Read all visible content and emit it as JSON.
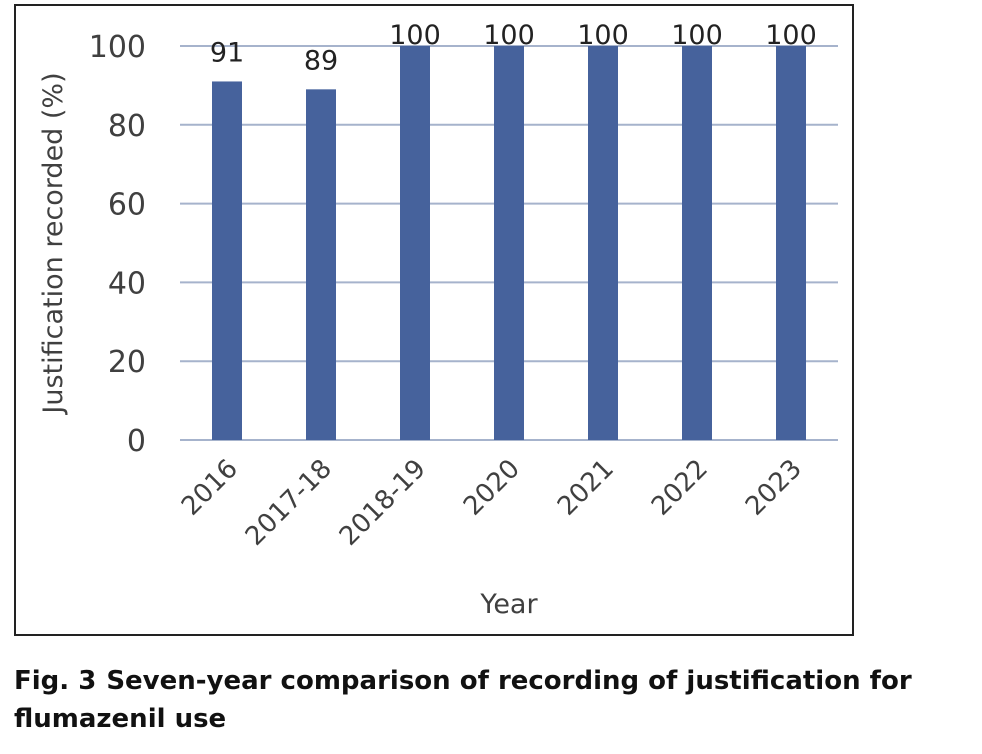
{
  "colors": {
    "bar": "#46629C",
    "grid": "#A6B3CC",
    "axis_text": "#404040",
    "frame": "#222222"
  },
  "caption": {
    "number": "Fig. 3",
    "text": "Seven-year comparison of recording of justification for flumazenil use"
  },
  "chart_data": {
    "type": "bar",
    "categories": [
      "2016",
      "2017-18",
      "2018-19",
      "2020",
      "2021",
      "2022",
      "2023"
    ],
    "series": [
      {
        "values": [
          91,
          89,
          100,
          100,
          100,
          100,
          100
        ]
      }
    ],
    "data_labels": [
      "91",
      "89",
      "100",
      "100",
      "100",
      "100",
      "100"
    ],
    "xlabel": "Year",
    "ylabel": "Justification recorded (%)",
    "ylim": [
      0,
      100
    ],
    "yticks": [
      0,
      20,
      40,
      60,
      80,
      100
    ],
    "grid": true,
    "legend": "none"
  }
}
